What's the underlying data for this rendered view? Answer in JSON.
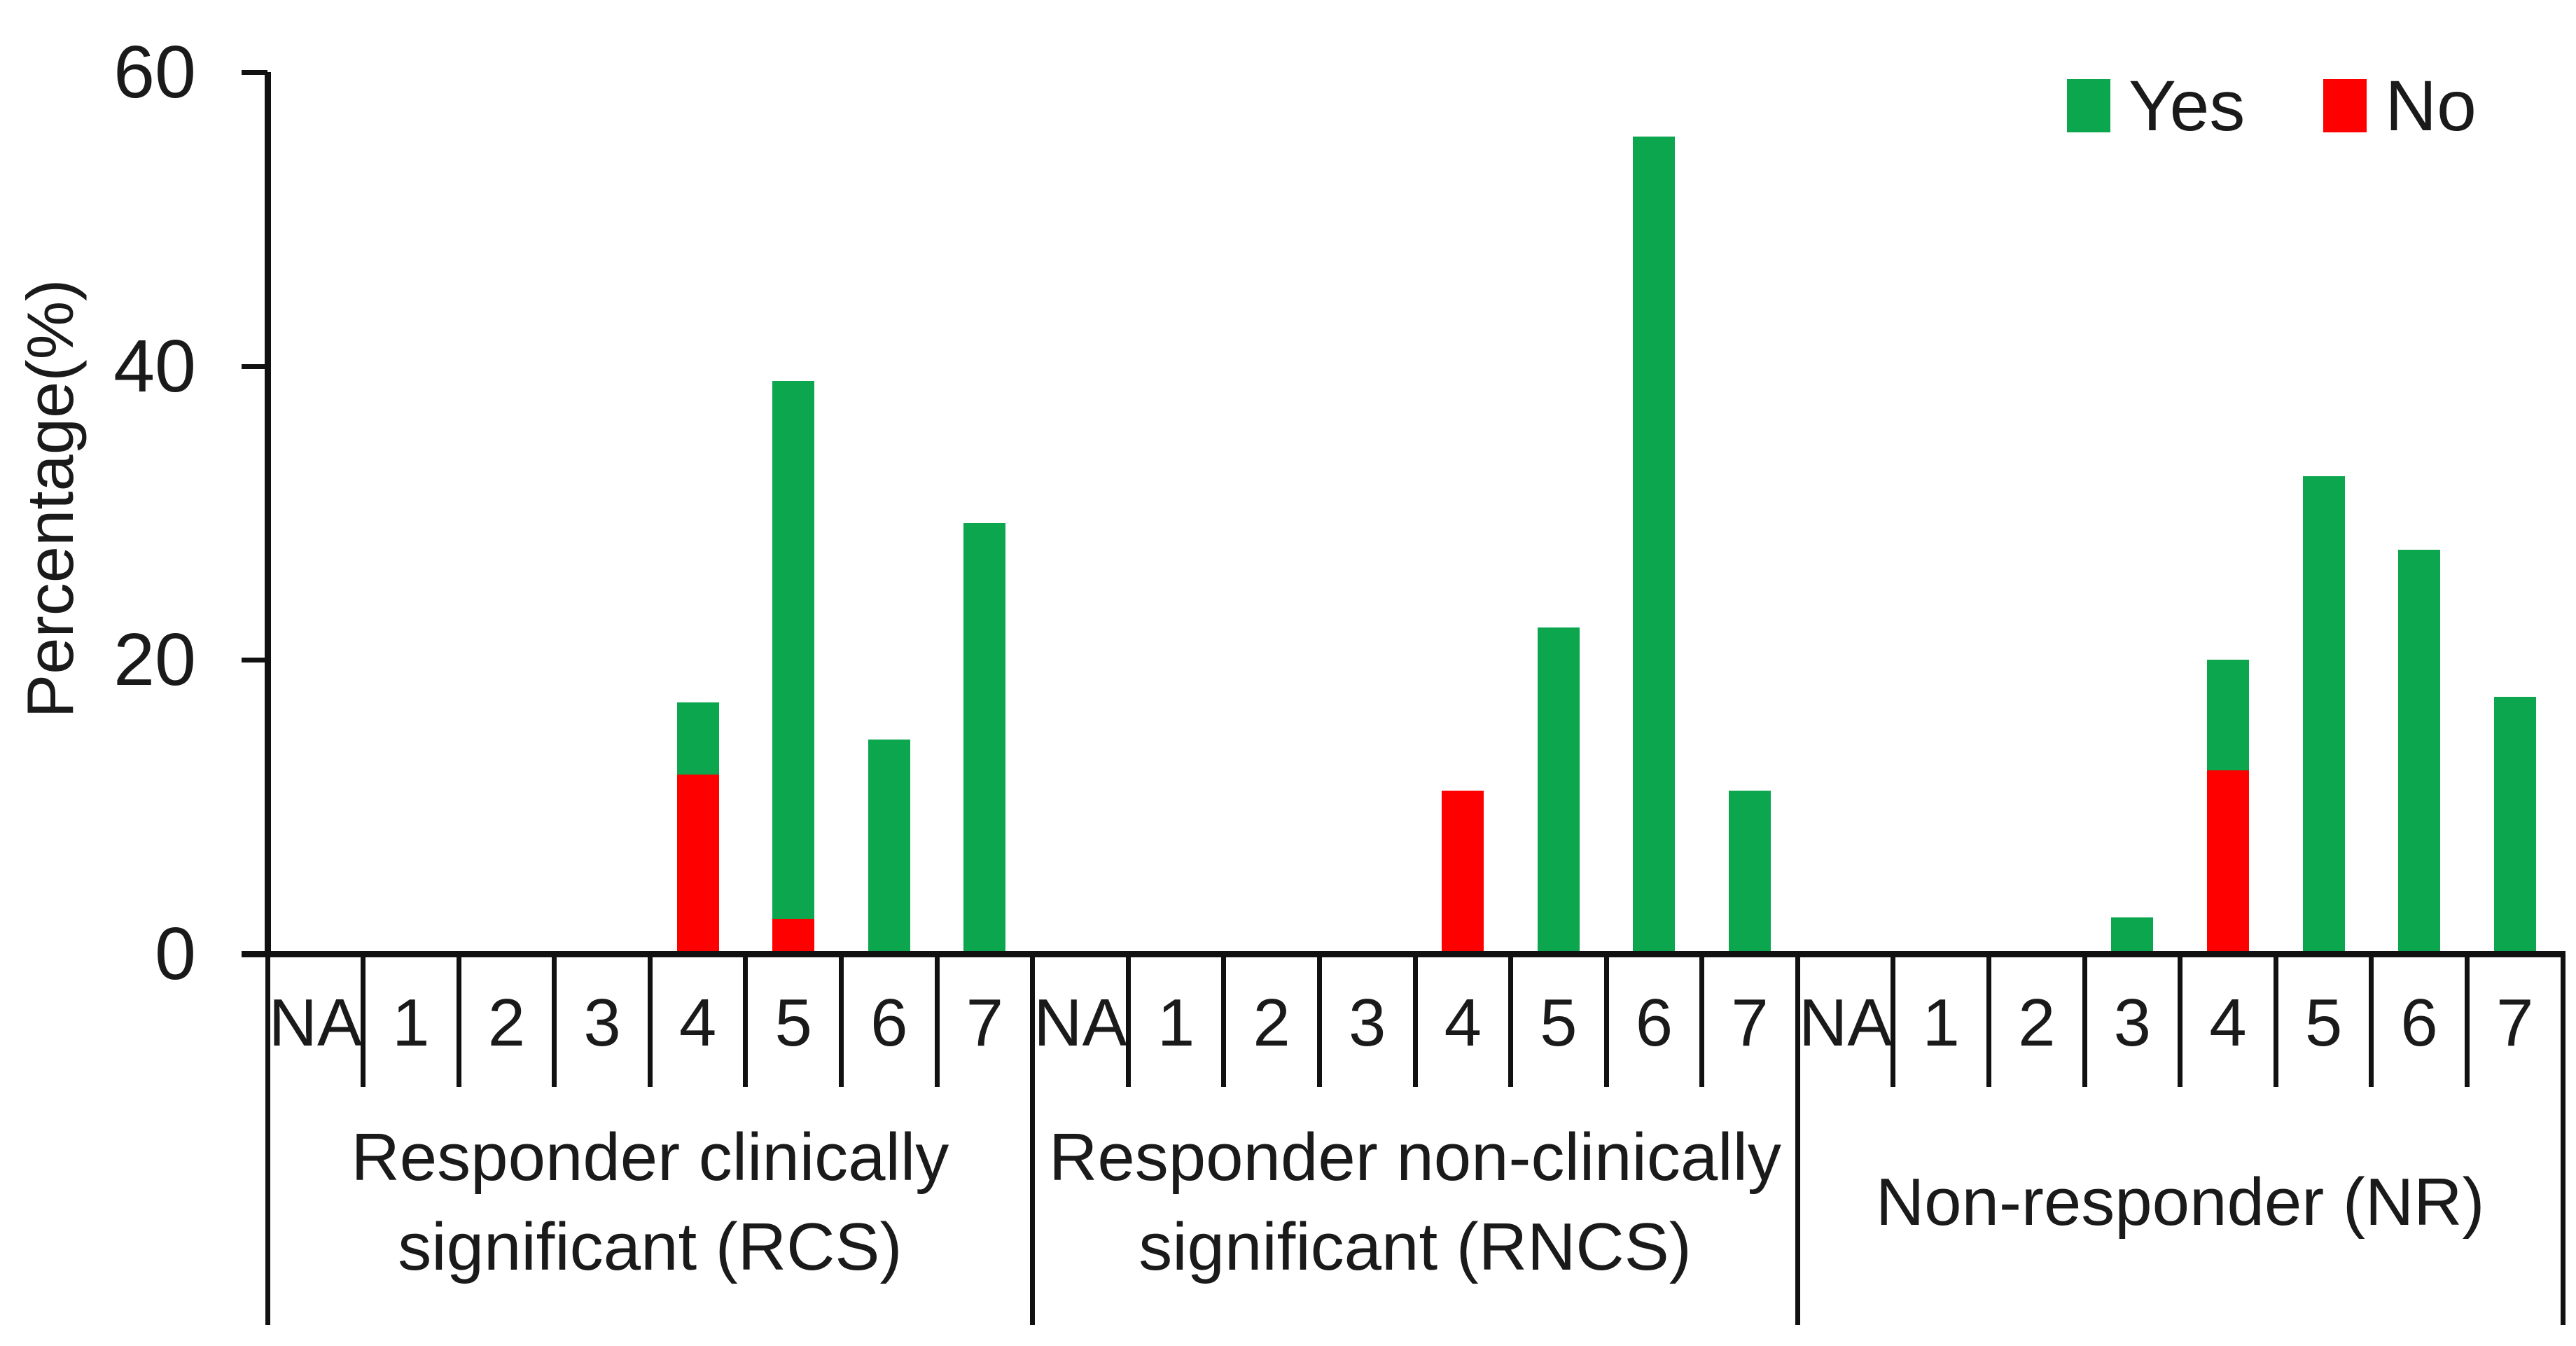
{
  "legend": {
    "items": [
      {
        "label": "Yes",
        "color": "#0ca64f"
      },
      {
        "label": "No",
        "color": "#fe0000"
      }
    ]
  },
  "chart_data": {
    "type": "bar",
    "stacked": true,
    "title": "",
    "xlabel": "",
    "ylabel": "Percentage(%)",
    "ylim": [
      0,
      60
    ],
    "yticks": [
      0,
      20,
      40,
      60
    ],
    "grid": false,
    "legend_position": "top-right",
    "categories": [
      "NA",
      "1",
      "2",
      "3",
      "4",
      "5",
      "6",
      "7"
    ],
    "stack_order_bottom_to_top": [
      "No",
      "Yes"
    ],
    "groups": [
      {
        "label": "Responder clinically significant (RCS)",
        "label_lines": [
          "Responder clinically",
          "significant (RCS)"
        ],
        "series": [
          {
            "name": "Yes",
            "values": [
              0,
              0,
              0,
              0,
              4.9,
              36.6,
              14.6,
              29.3
            ]
          },
          {
            "name": "No",
            "values": [
              0,
              0,
              0,
              0,
              12.2,
              2.4,
              0,
              0
            ]
          }
        ]
      },
      {
        "label": "Responder non-clinically significant (RNCS)",
        "label_lines": [
          "Responder non-clinically",
          "significant (RNCS)"
        ],
        "series": [
          {
            "name": "Yes",
            "values": [
              0,
              0,
              0,
              0,
              0,
              22.2,
              55.6,
              11.1
            ]
          },
          {
            "name": "No",
            "values": [
              0,
              0,
              0,
              0,
              11.1,
              0,
              0,
              0
            ]
          }
        ]
      },
      {
        "label": "Non-responder (NR)",
        "label_lines": [
          "Non-responder (NR)"
        ],
        "series": [
          {
            "name": "Yes",
            "values": [
              0,
              0,
              0,
              2.5,
              7.5,
              32.5,
              27.5,
              17.5
            ]
          },
          {
            "name": "No",
            "values": [
              0,
              0,
              0,
              0,
              12.5,
              0,
              0,
              0
            ]
          }
        ]
      }
    ],
    "colors": {
      "Yes": "#0ca64f",
      "No": "#fe0000",
      "axis": "#111111",
      "text": "#1a1a1a"
    }
  }
}
